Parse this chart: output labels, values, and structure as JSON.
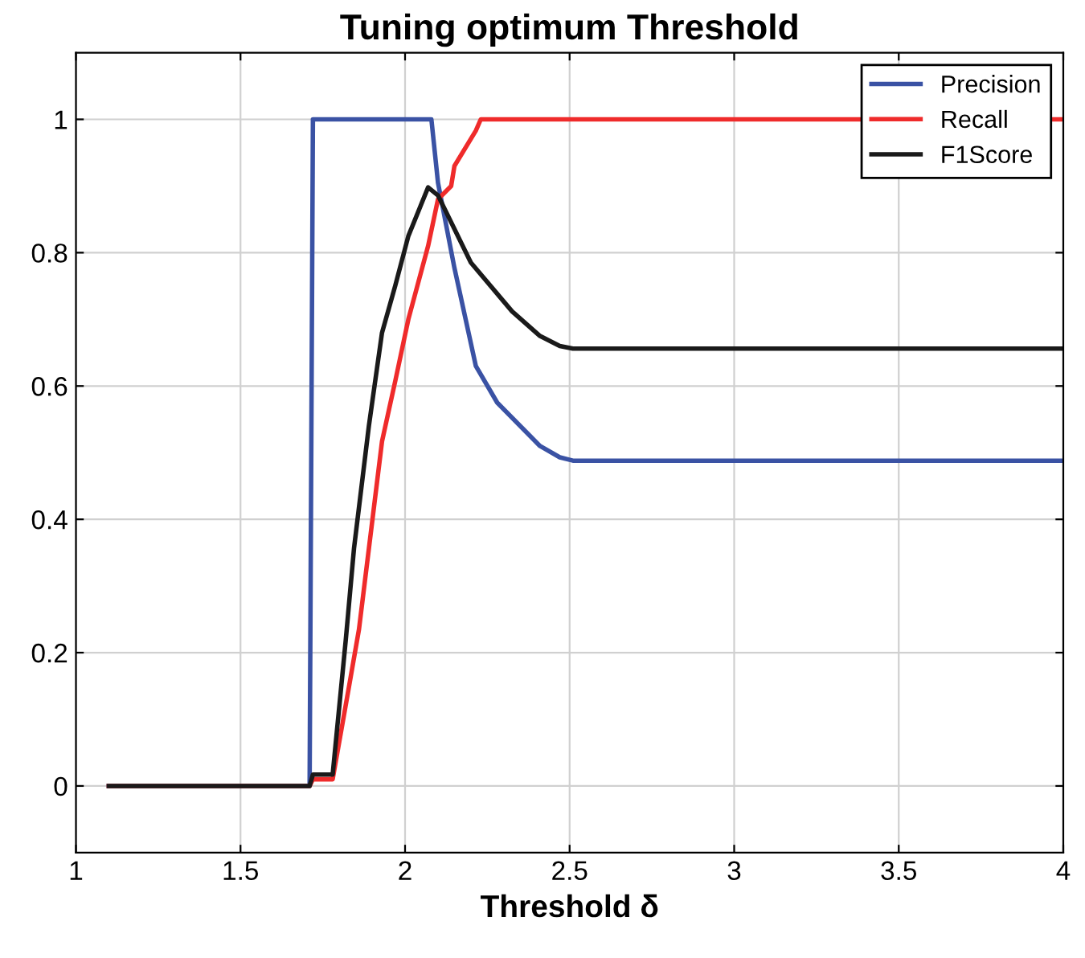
{
  "chart_data": {
    "type": "line",
    "title": "Tuning optimum Threshold",
    "xlabel": "Threshold δ",
    "xlim": [
      1,
      4
    ],
    "ylim": [
      -0.1,
      1.1
    ],
    "xticks": [
      1,
      1.5,
      2,
      2.5,
      3,
      3.5,
      4
    ],
    "yticks": [
      0,
      0.2,
      0.4,
      0.6,
      0.8,
      1
    ],
    "grid": true,
    "legend": "top right",
    "marker": "none",
    "line_style": "solid",
    "series": [
      {
        "name": "Precision",
        "color": "#3a52a4",
        "x": [
          1.1,
          1.71,
          1.72,
          2.08,
          2.1,
          2.15,
          2.215,
          2.28,
          2.41,
          2.47,
          2.51,
          4
        ],
        "values": [
          0,
          0,
          1,
          1,
          0.905,
          0.777,
          0.63,
          0.575,
          0.51,
          0.493,
          0.488,
          0.488
        ]
      },
      {
        "name": "Recall",
        "color": "#ef2b2b",
        "x": [
          1.1,
          1.71,
          1.72,
          1.78,
          1.83,
          1.86,
          1.93,
          1.97,
          2.01,
          2.07,
          2.1,
          2.14,
          2.15,
          2.215,
          2.23,
          4
        ],
        "values": [
          0,
          0,
          0.01,
          0.01,
          0.15,
          0.235,
          0.517,
          0.607,
          0.7,
          0.81,
          0.88,
          0.9,
          0.93,
          0.983,
          1,
          1
        ]
      },
      {
        "name": "F1Score",
        "color": "#1a1a1a",
        "x": [
          1.1,
          1.71,
          1.72,
          1.78,
          1.82,
          1.845,
          1.89,
          1.93,
          1.97,
          2.01,
          2.07,
          2.1,
          2.2,
          2.325,
          2.41,
          2.47,
          2.51,
          4
        ],
        "values": [
          0,
          0,
          0.017,
          0.017,
          0.22,
          0.357,
          0.54,
          0.68,
          0.75,
          0.825,
          0.898,
          0.886,
          0.785,
          0.712,
          0.675,
          0.66,
          0.656,
          0.656
        ]
      }
    ]
  }
}
